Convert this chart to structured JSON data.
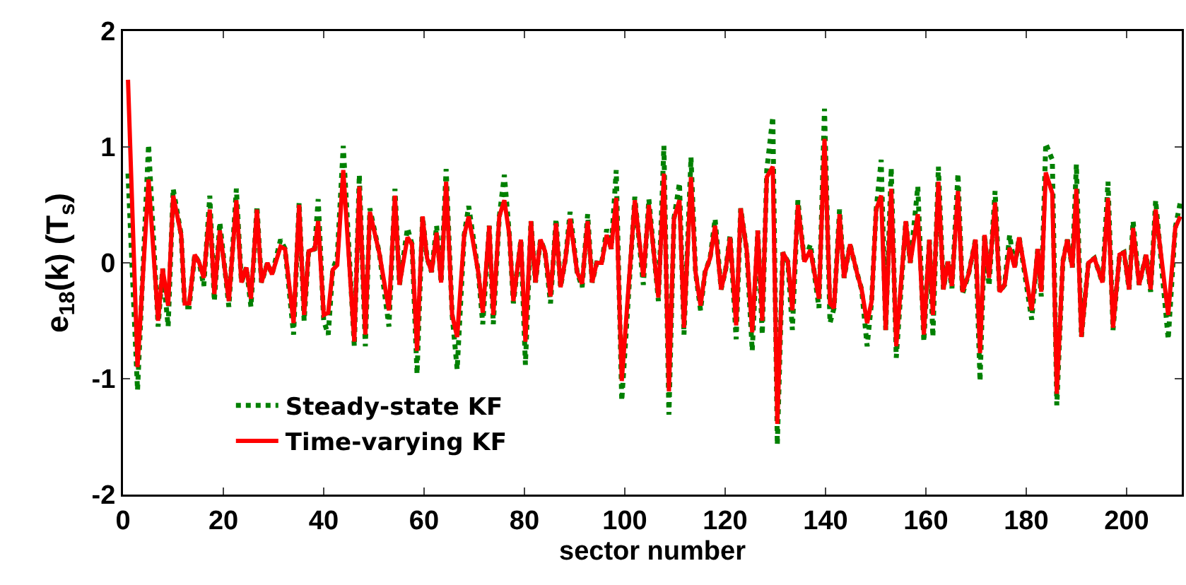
{
  "chart_data": {
    "type": "line",
    "xlabel": "sector number",
    "ylabel": "e$_{18}$(k) (T$_{s}$)",
    "x": [
      1,
      2.9,
      5.1,
      7,
      7.9,
      9,
      10,
      11.6,
      12.3,
      13.2,
      14.3,
      15.2,
      16.1,
      17.3,
      18.2,
      19.3,
      21.1,
      22.6,
      23.6,
      24.6,
      25.5,
      26.7,
      27.6,
      28.8,
      29.7,
      31.4,
      32.3,
      34,
      35.1,
      36.1,
      37,
      38.2,
      38.9,
      40,
      40.9,
      41.8,
      42.7,
      43.9,
      46.1,
      47.1,
      48.3,
      49.2,
      51.1,
      53,
      54.2,
      55.1,
      56.7,
      57.6,
      58.6,
      59.7,
      60.6,
      61.5,
      62.5,
      63.4,
      64.4,
      65.6,
      66.6,
      68,
      68.9,
      70.8,
      71.7,
      73,
      73.8,
      75,
      76,
      77,
      77.8,
      79.3,
      80.2,
      81.3,
      82.2,
      83.2,
      84.1,
      85.2,
      86.3,
      87.2,
      88.2,
      89.1,
      90.5,
      91.5,
      92.6,
      93.5,
      94.4,
      95.4,
      96.4,
      97.3,
      98.3,
      99.4,
      102,
      103.7,
      104.8,
      106.7,
      107.8,
      108.8,
      109.8,
      110.9,
      111.8,
      113.2,
      114.1,
      115.1,
      116,
      117,
      118,
      119.2,
      120.1,
      121,
      122.2,
      123.1,
      124.3,
      125.4,
      126.5,
      127.4,
      128.3,
      129.5,
      130.4,
      131.5,
      132.5,
      133.4,
      134.5,
      135.8,
      137,
      138.7,
      139.8,
      140.9,
      141.7,
      142.8,
      143.7,
      144.9,
      146.3,
      147.2,
      148.3,
      149.2,
      150.1,
      151.1,
      152,
      153.1,
      154.1,
      156,
      156.9,
      158.4,
      159.6,
      160.7,
      161.4,
      162.5,
      163.5,
      164.4,
      165.2,
      166.4,
      167.3,
      168.5,
      169.9,
      170.8,
      171.7,
      172.6,
      173.8,
      174.7,
      175.7,
      176.7,
      177.7,
      178.6,
      181.1,
      182.3,
      183,
      183.9,
      185.2,
      186.1,
      187.3,
      188.2,
      189.2,
      190,
      191,
      192.4,
      193.6,
      195.2,
      196.3,
      197.3,
      198.6,
      199.5,
      200.5,
      201.3,
      202.5,
      203.9,
      204.8,
      205.8,
      208.3,
      209.7,
      210.7
    ],
    "series": [
      {
        "name": "Steady-state KF",
        "color": "#008000",
        "line_style": "dotted",
        "values": [
          0.77,
          -1.1,
          1.02,
          -0.55,
          -0.05,
          -0.55,
          0.64,
          0.24,
          -0.38,
          -0.38,
          0.07,
          0,
          -0.2,
          0.58,
          -0.33,
          0.35,
          -0.38,
          0.64,
          -0.17,
          -0.04,
          -0.38,
          0.49,
          -0.17,
          0,
          -0.1,
          0.2,
          0.12,
          -0.62,
          0.52,
          -0.5,
          0.1,
          0.12,
          0.55,
          -0.5,
          -0.62,
          -0.06,
          0.05,
          1.01,
          -0.72,
          0.76,
          -0.72,
          0.47,
          0.08,
          -0.55,
          0.64,
          -0.19,
          0.3,
          0.16,
          -0.96,
          0.4,
          0.04,
          -0.08,
          0.32,
          -0.17,
          0.81,
          -0.45,
          -0.92,
          0.24,
          0.49,
          -0.08,
          -0.53,
          0.32,
          -0.53,
          0.4,
          0.76,
          0.24,
          -0.35,
          0.2,
          -0.88,
          0.36,
          -0.17,
          0.2,
          0.1,
          -0.35,
          0.38,
          -0.21,
          0.04,
          0.44,
          -0.08,
          -0.21,
          0.42,
          -0.17,
          0,
          0,
          0.29,
          0.12,
          0.8,
          -1.19,
          0.57,
          -0.19,
          0.55,
          -0.33,
          1.01,
          -1.31,
          0.38,
          0.69,
          -0.62,
          0.91,
          -0.08,
          -0.41,
          -0.08,
          0.04,
          0.38,
          -0.23,
          -0.06,
          0.24,
          -0.66,
          0.47,
          0.11,
          -0.76,
          0.28,
          -0.62,
          0.8,
          1.26,
          -1.57,
          0.09,
          0.01,
          -0.58,
          0.54,
          0.01,
          0.16,
          -0.39,
          1.33,
          -0.52,
          -0.39,
          0.46,
          -0.13,
          0.16,
          -0.09,
          -0.23,
          -0.72,
          -0.33,
          0.46,
          0.89,
          -0.58,
          0.82,
          -0.82,
          0.36,
          0,
          0.66,
          -0.68,
          0.2,
          -0.64,
          0.83,
          -0.23,
          0.01,
          -0.22,
          0.77,
          -0.27,
          -0.1,
          0.2,
          -1.02,
          0.24,
          -0.2,
          0.62,
          -0.25,
          -0.19,
          0.24,
          -0.04,
          0.22,
          -0.49,
          0.12,
          -0.29,
          1.03,
          0.89,
          -1.23,
          0.01,
          0.2,
          -0.04,
          0.85,
          -0.64,
          0,
          0.04,
          -0.17,
          0.7,
          -0.58,
          0.07,
          0.09,
          -0.23,
          0.36,
          -0.19,
          0.07,
          -0.25,
          0.54,
          -0.66,
          0.3,
          0.52
        ]
      },
      {
        "name": "Time-varying KF",
        "color": "#ff0000",
        "line_style": "solid",
        "values": [
          1.58,
          -0.9,
          0.72,
          -0.5,
          -0.05,
          -0.37,
          0.58,
          0.24,
          -0.35,
          -0.35,
          0.07,
          0,
          -0.13,
          0.46,
          -0.27,
          0.28,
          -0.33,
          0.54,
          -0.17,
          -0.04,
          -0.31,
          0.46,
          -0.17,
          0,
          -0.1,
          0.14,
          0.12,
          -0.52,
          0.5,
          -0.45,
          0.1,
          0.12,
          0.36,
          -0.45,
          -0.43,
          -0.06,
          -0.02,
          0.8,
          -0.68,
          0.66,
          -0.62,
          0.44,
          0.08,
          -0.41,
          0.58,
          -0.19,
          0.22,
          0.16,
          -0.76,
          0.4,
          0.04,
          -0.08,
          0.26,
          -0.17,
          0.7,
          -0.45,
          -0.64,
          0.24,
          0.4,
          -0.08,
          -0.43,
          0.32,
          -0.45,
          0.4,
          0.54,
          0.24,
          -0.33,
          0.2,
          -0.68,
          0.36,
          -0.17,
          0.2,
          0.1,
          -0.29,
          0.34,
          -0.21,
          0.04,
          0.38,
          -0.08,
          -0.18,
          0.36,
          -0.17,
          0,
          0,
          0.24,
          0.12,
          0.56,
          -1.02,
          0.54,
          -0.12,
          0.5,
          -0.3,
          0.77,
          -1.11,
          0.38,
          0.54,
          -0.56,
          0.74,
          -0.08,
          -0.37,
          -0.08,
          0.04,
          0.32,
          -0.23,
          -0.06,
          0.22,
          -0.54,
          0.47,
          0.11,
          -0.6,
          0.28,
          -0.5,
          0.74,
          0.83,
          -1.39,
          0.09,
          0.01,
          -0.41,
          0.5,
          0.01,
          0.11,
          -0.31,
          1.07,
          -0.35,
          -0.39,
          0.42,
          -0.13,
          0.16,
          -0.09,
          -0.23,
          -0.52,
          -0.33,
          0.46,
          0.58,
          -0.58,
          0.64,
          -0.72,
          0.36,
          0,
          0.42,
          -0.62,
          0.2,
          -0.45,
          0.7,
          -0.23,
          0.01,
          -0.2,
          0.62,
          -0.25,
          -0.1,
          0.2,
          -0.78,
          0.24,
          -0.13,
          0.52,
          -0.25,
          -0.19,
          0.13,
          -0.04,
          0.22,
          -0.41,
          0.12,
          -0.25,
          0.78,
          0.6,
          -1.13,
          0.01,
          0.2,
          -0.04,
          0.64,
          -0.64,
          0,
          0.04,
          -0.17,
          0.56,
          -0.56,
          0.07,
          0.09,
          -0.23,
          0.3,
          -0.19,
          0.07,
          -0.23,
          0.46,
          -0.45,
          0.3,
          0.4
        ]
      }
    ],
    "xlim": [
      0,
      211
    ],
    "xticks": [
      0,
      20,
      40,
      60,
      80,
      100,
      120,
      140,
      160,
      180,
      200
    ],
    "ylim": [
      -2,
      2
    ],
    "yticks": [
      -2,
      -1,
      0,
      1,
      2
    ],
    "grid": false,
    "legend": "bottom left",
    "marker": "none"
  }
}
